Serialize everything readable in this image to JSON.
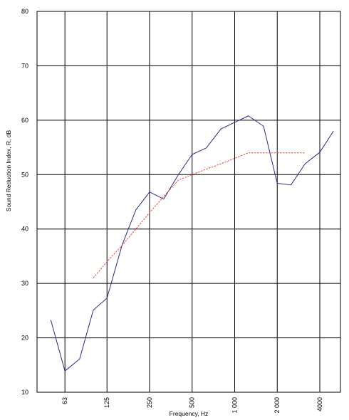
{
  "chart_data": {
    "type": "line",
    "xlabel": "Frequency, Hz",
    "ylabel": "Sound Reduction Index, R, dB",
    "x_scale": "log",
    "xlim": [
      40,
      5600
    ],
    "ylim": [
      10,
      80
    ],
    "y_ticks": [
      10,
      20,
      30,
      40,
      50,
      60,
      70,
      80
    ],
    "x_ticks": [
      {
        "value": 63,
        "label": "63"
      },
      {
        "value": 125,
        "label": "125"
      },
      {
        "value": 250,
        "label": "250"
      },
      {
        "value": 500,
        "label": "500"
      },
      {
        "value": 1000,
        "label": "1 000"
      },
      {
        "value": 2000,
        "label": "2 000"
      },
      {
        "value": 4000,
        "label": "4000"
      }
    ],
    "x_gridlines": [
      40,
      63,
      125,
      250,
      500,
      1000,
      2000,
      4000
    ],
    "grid": true,
    "series": [
      {
        "style": "solid",
        "color": "#2a2a8c",
        "x": [
          50,
          63,
          80,
          100,
          125,
          160,
          200,
          250,
          315,
          400,
          500,
          630,
          800,
          1000,
          1250,
          1600,
          2000,
          2500,
          3150,
          4000,
          5000
        ],
        "y": [
          23.3,
          13.9,
          16.1,
          25.1,
          27.3,
          37.1,
          43.5,
          46.8,
          45.5,
          50,
          53.7,
          54.9,
          58.4,
          59.6,
          60.8,
          58.9,
          48.4,
          48.1,
          52,
          54.1,
          58
        ]
      },
      {
        "style": "dashed",
        "color": "#e8453c",
        "x": [
          100,
          125,
          160,
          200,
          250,
          315,
          400,
          500,
          630,
          800,
          1000,
          1250,
          1600,
          2000,
          2500,
          3150
        ],
        "y": [
          31,
          34,
          37,
          40,
          43,
          46,
          49,
          50,
          51,
          52,
          53,
          54,
          54,
          54,
          54,
          54
        ]
      }
    ]
  }
}
